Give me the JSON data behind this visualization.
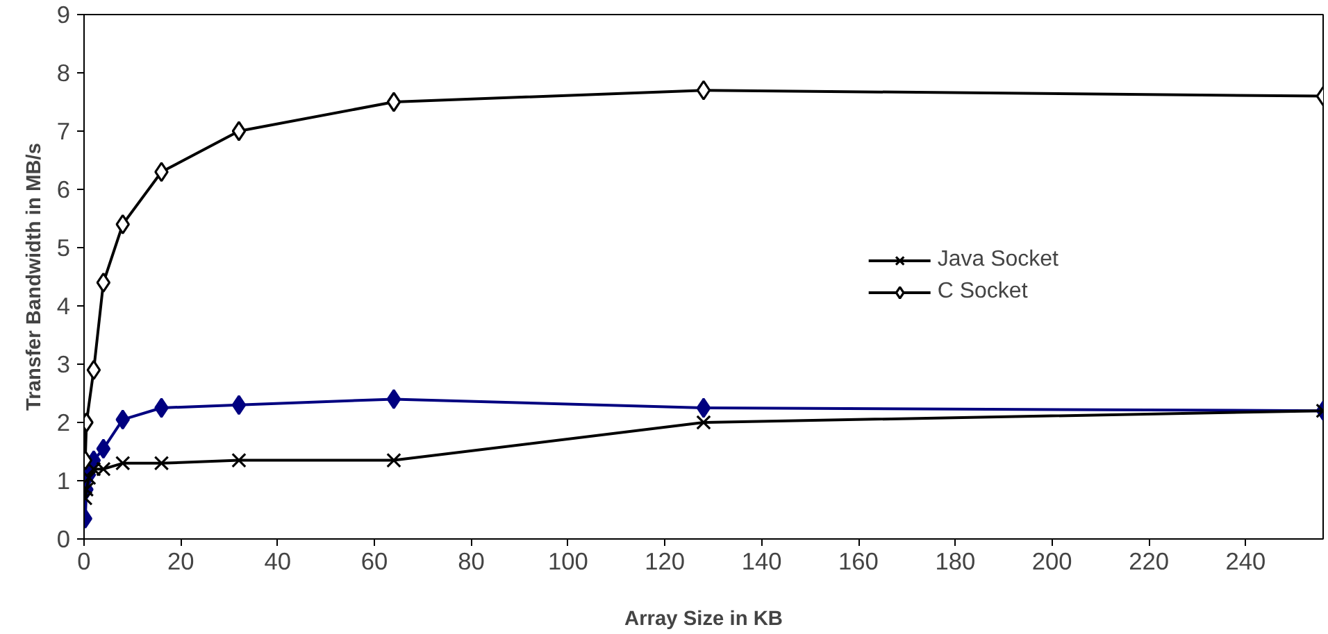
{
  "chart_data": {
    "type": "line",
    "xlabel": "Array Size in KB",
    "ylabel": "Transfer Bandwidth in MB/s",
    "xlim": [
      0,
      256
    ],
    "xticks": [
      0,
      20,
      40,
      60,
      80,
      100,
      120,
      140,
      160,
      180,
      200,
      220,
      240
    ],
    "ylim": [
      0,
      9
    ],
    "yticks": [
      0,
      1,
      2,
      3,
      4,
      5,
      6,
      7,
      8,
      9
    ],
    "grid": false,
    "legend": "right",
    "series": [
      {
        "color": "#000080",
        "marker": "diamond",
        "x": [
          0.25,
          0.5,
          1,
          2,
          4,
          8,
          16,
          32,
          64,
          128,
          256
        ],
        "values": [
          0.35,
          0.85,
          1.1,
          1.35,
          1.55,
          2.05,
          2.25,
          2.3,
          2.4,
          2.25,
          2.2
        ]
      },
      {
        "name": "Java Socket",
        "color": "#000000",
        "marker": "cross",
        "x": [
          0.25,
          0.5,
          1,
          2,
          4,
          8,
          16,
          32,
          64,
          128,
          256
        ],
        "values": [
          0.7,
          0.85,
          1.05,
          1.2,
          1.2,
          1.3,
          1.3,
          1.35,
          1.35,
          2.0,
          2.2
        ]
      },
      {
        "name": "C Socket",
        "color": "#000000",
        "marker": "diamond",
        "x": [
          0.25,
          0.5,
          2,
          4,
          8,
          16,
          32,
          64,
          128,
          256
        ],
        "values": [
          1.35,
          2.0,
          2.9,
          4.4,
          5.4,
          6.3,
          7.0,
          7.5,
          7.7,
          7.6
        ]
      }
    ]
  }
}
